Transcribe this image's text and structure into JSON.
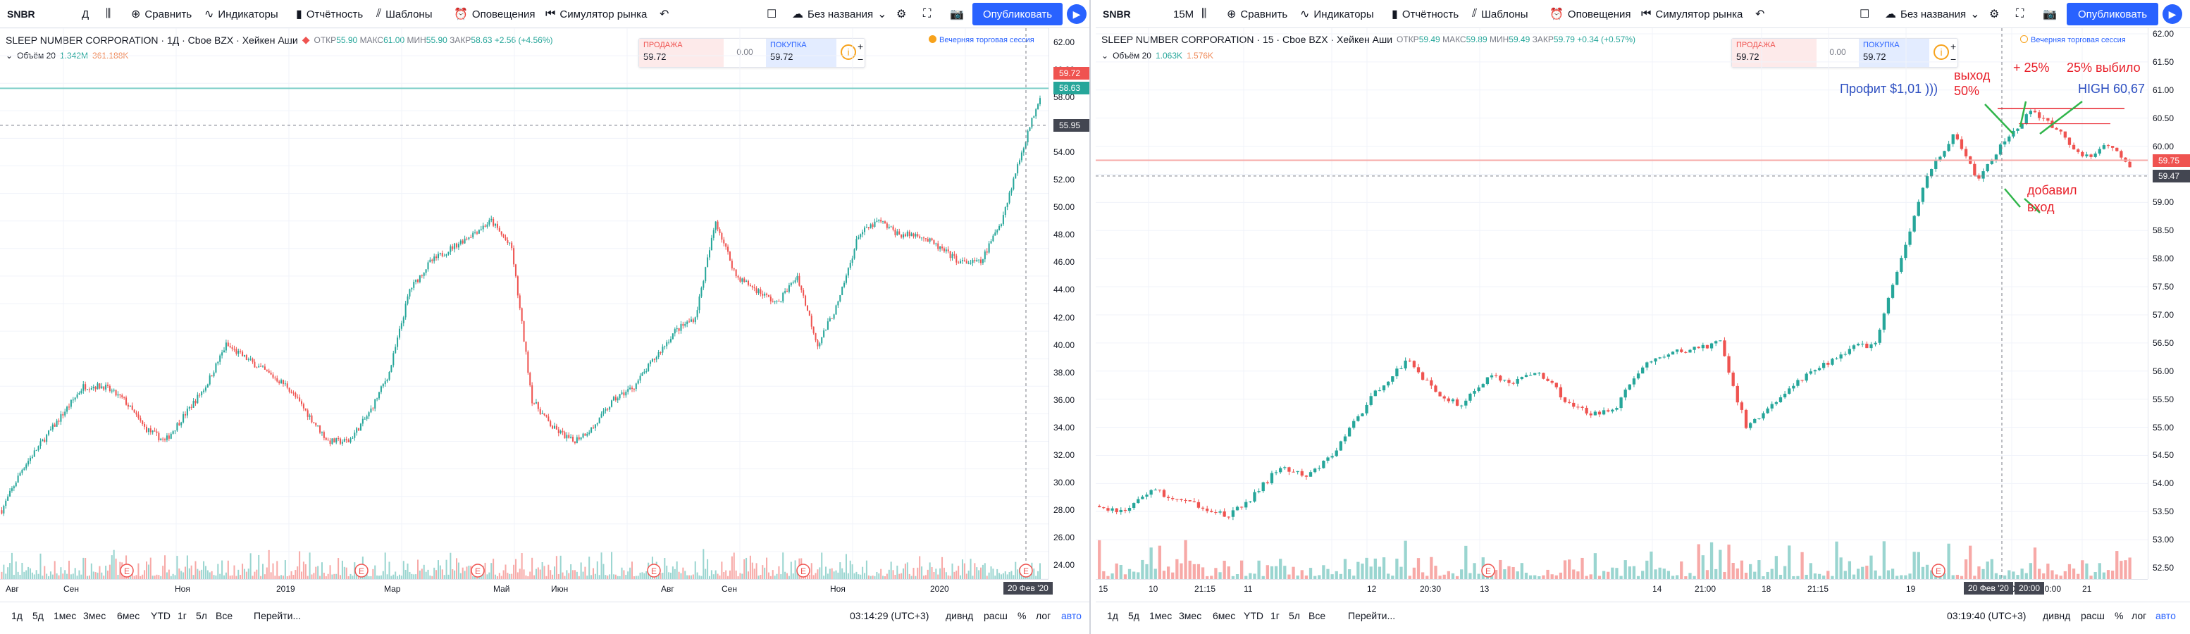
{
  "left": {
    "toolbar": {
      "symbol": "SNBR",
      "interval": "Д",
      "compare": "Сравнить",
      "indicators": "Индикаторы",
      "reports": "Отчётность",
      "templates": "Шаблоны",
      "alerts": "Оповещения",
      "replay": "Симулятор рынка",
      "layout": "Без названия",
      "publish": "Опубликовать"
    },
    "legend": {
      "title": "SLEEP NUMBER CORPORATION · 1Д · Cboe BZX · Хейкен Аши",
      "open_label": "ОТКР",
      "open": "55.90",
      "high_label": "МАКС",
      "high": "61.00",
      "low_label": "МИН",
      "low": "55.90",
      "close_label": "ЗАКР",
      "close": "58.63",
      "change": "+2.56 (+4.56%)"
    },
    "volume": {
      "label": "Объём 20",
      "v1": "1.342M",
      "v2": "361.188K"
    },
    "trade": {
      "sell_label": "ПРОДАЖА",
      "sell": "59.72",
      "spread": "0.00",
      "buy_label": "ПОКУПКА",
      "buy": "59.72"
    },
    "session": "Вечерняя торговая сессия",
    "price_axis": [
      "62.00",
      "60.00",
      "58.00",
      "56.00",
      "54.00",
      "52.00",
      "50.00",
      "48.00",
      "46.00",
      "44.00",
      "42.00",
      "40.00",
      "38.00",
      "36.00",
      "34.00",
      "32.00",
      "30.00",
      "28.00",
      "26.00",
      "24.00"
    ],
    "price_tags": {
      "top": "59.72",
      "mid": "58.63",
      "cross": "55.95"
    },
    "time_axis": [
      "Авг",
      "Сен",
      "Ноя",
      "2019",
      "Мар",
      "Май",
      "Июн",
      "Авг",
      "Сен",
      "Ноя",
      "2020"
    ],
    "date_tag": "20 Фев '20",
    "bottom": {
      "ranges": [
        "1д",
        "5д",
        "1мес",
        "3мес",
        "6мес",
        "YTD",
        "1г",
        "5л",
        "Все"
      ],
      "goto": "Перейти...",
      "time": "03:14:29 (UTC+3)",
      "divs": "дивнд",
      "ext": "расш",
      "pct": "%",
      "log": "лог",
      "auto": "авто"
    }
  },
  "right": {
    "toolbar": {
      "symbol": "SNBR",
      "interval": "15M",
      "compare": "Сравнить",
      "indicators": "Индикаторы",
      "reports": "Отчётность",
      "templates": "Шаблоны",
      "alerts": "Оповещения",
      "replay": "Симулятор рынка",
      "layout": "Без названия",
      "publish": "Опубликовать"
    },
    "legend": {
      "title": "SLEEP NUMBER CORPORATION · 15 · Cboe BZX · Хейкен Аши",
      "open_label": "ОТКР",
      "open": "59.49",
      "high_label": "МАКС",
      "high": "59.89",
      "low_label": "МИН",
      "low": "59.49",
      "close_label": "ЗАКР",
      "close": "59.79",
      "change": "+0.34 (+0.57%)"
    },
    "volume": {
      "label": "Объём 20",
      "v1": "1.063K",
      "v2": "1.576K"
    },
    "trade": {
      "sell_label": "ПРОДАЖА",
      "sell": "59.72",
      "spread": "0.00",
      "buy_label": "ПОКУПКА",
      "buy": "59.72"
    },
    "session": "Вечерняя торговая сессия",
    "price_axis": [
      "62.00",
      "61.50",
      "61.00",
      "60.50",
      "60.00",
      "59.50",
      "59.00",
      "58.50",
      "58.00",
      "57.50",
      "57.00",
      "56.50",
      "56.00",
      "55.50",
      "55.00",
      "54.50",
      "54.00",
      "53.50",
      "53.00",
      "52.50"
    ],
    "price_tags": {
      "top": "59.75",
      "cross": "59.47"
    },
    "time_axis": [
      "15",
      "10",
      "21:15",
      "11",
      "12",
      "20:30",
      "13",
      "14",
      "21:00",
      "18",
      "21:15",
      "19",
      "21:00",
      "20",
      "20:00",
      "21"
    ],
    "date_tag": "20 Фев '20",
    "time_tag": "20:00",
    "annotations": {
      "exit": "выход\n50%",
      "plus25": "+ 25%",
      "exit25": "25% выбило",
      "profit": "Профит $1,01 )))",
      "high": "HIGH 60,67",
      "added": "добавил\nвход"
    },
    "bottom": {
      "ranges": [
        "1д",
        "5д",
        "1мес",
        "3мес",
        "6мес",
        "YTD",
        "1г",
        "5л",
        "Все"
      ],
      "goto": "Перейти...",
      "time": "03:19:40 (UTC+3)",
      "divs": "дивнд",
      "ext": "расш",
      "pct": "%",
      "log": "лог",
      "auto": "авто"
    }
  },
  "colors": {
    "up": "#26a69a",
    "down": "#ef5350",
    "accent": "#2962ff"
  },
  "chart_data": [
    {
      "type": "candlestick",
      "title": "SLEEP NUMBER CORPORATION · 1Д",
      "x_range": [
        "Jul 2018",
        "Feb 2020"
      ],
      "ylim": [
        23,
        63
      ],
      "close_path": [
        28,
        31,
        33,
        35,
        37,
        37,
        36,
        34,
        33,
        35,
        37,
        40,
        39,
        38,
        37,
        35,
        33,
        33,
        35,
        38,
        44,
        46,
        47,
        48,
        49,
        47,
        36,
        34,
        33,
        34,
        36,
        37,
        39,
        41,
        42,
        49,
        45,
        44,
        43,
        45,
        40,
        43,
        48,
        49,
        48,
        48,
        47,
        46,
        46,
        49,
        54,
        58.6
      ],
      "price_lines": [
        {
          "value": 58.63
        },
        {
          "value": 55.95
        }
      ]
    },
    {
      "type": "candlestick",
      "title": "SLEEP NUMBER CORPORATION · 15",
      "x_range": [
        "Feb 7 2020",
        "Feb 21 2020"
      ],
      "ylim": [
        52.3,
        62.1
      ],
      "close_path": [
        53.6,
        53.5,
        53.9,
        53.7,
        53.6,
        53.4,
        53.8,
        54.3,
        54.1,
        54.5,
        55.2,
        55.8,
        56.2,
        55.6,
        55.4,
        55.9,
        55.8,
        56.0,
        55.5,
        55.2,
        55.4,
        56.1,
        56.3,
        56.4,
        56.5,
        55.0,
        55.4,
        55.8,
        56.1,
        56.4,
        56.5,
        58.0,
        59.5,
        60.2,
        59.4,
        60.1,
        60.6,
        60.3,
        59.8,
        60.0,
        59.6
      ],
      "price_lines": [
        {
          "value": 59.75
        },
        {
          "value": 59.47
        }
      ]
    }
  ]
}
